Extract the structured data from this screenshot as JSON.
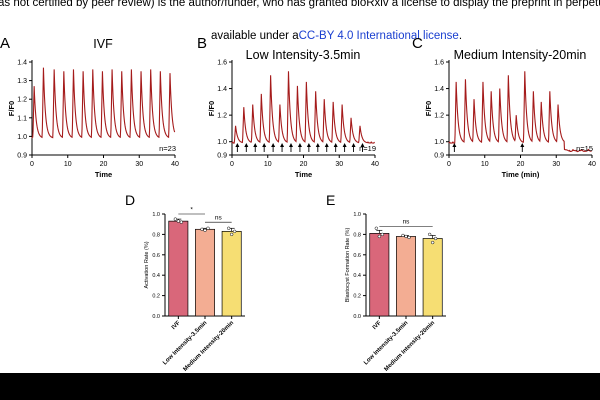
{
  "header": {
    "line1": "as not certified by peer review) is the author/funder, who has granted bioRxiv a license to display the preprint in perpetuity. It i",
    "line2_prefix": "available under a",
    "line2_link": "CC-BY 4.0 International license",
    "line2_suffix": "."
  },
  "colors": {
    "trace": "#a51b1b",
    "bar_ivf": "#d9677a",
    "bar_low": "#f3ad93",
    "bar_medium": "#f6de73"
  },
  "chart_data": [
    {
      "panel": "A",
      "type": "line",
      "title": "IVF",
      "xlabel": "Time",
      "ylabel": "F/F0",
      "xlim": [
        0,
        40
      ],
      "ylim": [
        0.9,
        1.4
      ],
      "xticks": [
        "0",
        "10",
        "20",
        "30",
        "40"
      ],
      "yticks": [
        "0.9",
        "1.0",
        "1.1",
        "1.2",
        "1.3",
        "1.4"
      ],
      "baseline": 0.99,
      "peaks": [
        {
          "x": 0.6,
          "y": 1.27
        },
        {
          "x": 3.2,
          "y": 1.37
        },
        {
          "x": 6.2,
          "y": 1.36
        },
        {
          "x": 8.9,
          "y": 1.35
        },
        {
          "x": 11.6,
          "y": 1.36
        },
        {
          "x": 14.3,
          "y": 1.35
        },
        {
          "x": 17.0,
          "y": 1.36
        },
        {
          "x": 19.7,
          "y": 1.35
        },
        {
          "x": 22.4,
          "y": 1.36
        },
        {
          "x": 25.1,
          "y": 1.35
        },
        {
          "x": 27.8,
          "y": 1.36
        },
        {
          "x": 30.5,
          "y": 1.35
        },
        {
          "x": 33.2,
          "y": 1.36
        },
        {
          "x": 35.9,
          "y": 1.35
        },
        {
          "x": 38.6,
          "y": 1.34
        }
      ],
      "annotation": "n=23"
    },
    {
      "panel": "B",
      "type": "line",
      "title": "Low Intensity-3.5min",
      "xlabel": "Time",
      "ylabel": "F/F0",
      "xlim": [
        0,
        40
      ],
      "ylim": [
        0.9,
        1.6
      ],
      "xticks": [
        "0",
        "10",
        "20",
        "30",
        "40"
      ],
      "yticks": [
        "0.9",
        "1.0",
        "1.2",
        "1.4",
        "1.6"
      ],
      "baseline": 0.99,
      "peaks": [
        {
          "x": 1.0,
          "y": 1.12
        },
        {
          "x": 3.3,
          "y": 1.26
        },
        {
          "x": 5.8,
          "y": 1.28
        },
        {
          "x": 8.2,
          "y": 1.36
        },
        {
          "x": 10.8,
          "y": 1.5
        },
        {
          "x": 13.4,
          "y": 1.28
        },
        {
          "x": 15.8,
          "y": 1.53
        },
        {
          "x": 18.3,
          "y": 1.42
        },
        {
          "x": 20.8,
          "y": 1.45
        },
        {
          "x": 23.4,
          "y": 1.38
        },
        {
          "x": 25.8,
          "y": 1.32
        },
        {
          "x": 28.3,
          "y": 1.3
        },
        {
          "x": 30.8,
          "y": 1.28
        },
        {
          "x": 33.3,
          "y": 1.18
        },
        {
          "x": 35.8,
          "y": 1.12
        }
      ],
      "stimulus_arrows_x": [
        1.5,
        4.0,
        6.5,
        9.0,
        11.5,
        14.0,
        16.5,
        19.0,
        21.5,
        24.0,
        26.5,
        29.0,
        31.5,
        34.0,
        36.5
      ],
      "annotation": "n=19"
    },
    {
      "panel": "C",
      "type": "line",
      "title": "Medium Intensity-20min",
      "xlabel": "Time (min)",
      "ylabel": "F/F0",
      "xlim": [
        0,
        40
      ],
      "ylim": [
        0.9,
        1.6
      ],
      "xticks": [
        "0",
        "10",
        "20",
        "30",
        "40"
      ],
      "yticks": [
        "0.9",
        "1.0",
        "1.2",
        "1.4",
        "1.6"
      ],
      "baseline": 0.99,
      "late_baseline": 0.93,
      "peaks": [
        {
          "x": 2.0,
          "y": 1.45
        },
        {
          "x": 4.6,
          "y": 1.47
        },
        {
          "x": 7.0,
          "y": 1.32
        },
        {
          "x": 9.5,
          "y": 1.45
        },
        {
          "x": 11.8,
          "y": 1.38
        },
        {
          "x": 14.2,
          "y": 1.4
        },
        {
          "x": 16.6,
          "y": 1.5
        },
        {
          "x": 18.8,
          "y": 1.2
        },
        {
          "x": 21.2,
          "y": 1.53
        },
        {
          "x": 23.6,
          "y": 1.38
        },
        {
          "x": 25.8,
          "y": 1.3
        },
        {
          "x": 28.2,
          "y": 1.38
        },
        {
          "x": 30.5,
          "y": 1.28
        }
      ],
      "stimulus_arrows_x": [
        1.5,
        20.5
      ],
      "annotation": "n=15"
    },
    {
      "panel": "D",
      "type": "bar",
      "ylabel": "Activation Rate (%)",
      "ylim": [
        0,
        1.0
      ],
      "yticks": [
        "0.0",
        "0.2",
        "0.4",
        "0.6",
        "0.8",
        "1.0"
      ],
      "categories": [
        "IVF",
        "Low Intensity-3.5min",
        "Medium Intensity-20min"
      ],
      "values": [
        0.93,
        0.85,
        0.83
      ],
      "errors": [
        0.02,
        0.01,
        0.03
      ],
      "points": [
        [
          0.95,
          0.93,
          0.92
        ],
        [
          0.85,
          0.84,
          0.86
        ],
        [
          0.86,
          0.8,
          0.83
        ]
      ],
      "significance": [
        {
          "from": 0,
          "to": 1,
          "label": "*"
        },
        {
          "from": 1,
          "to": 2,
          "label": "ns"
        }
      ]
    },
    {
      "panel": "E",
      "type": "bar",
      "ylabel": "Blastocyst Formation Rate (%)",
      "ylim": [
        0,
        1.0
      ],
      "yticks": [
        "0.0",
        "0.2",
        "0.4",
        "0.6",
        "0.8",
        "1.0"
      ],
      "categories": [
        "IVF",
        "Low Intensity-3.5min",
        "Medium Intensity-20min"
      ],
      "values": [
        0.81,
        0.78,
        0.76
      ],
      "errors": [
        0.03,
        0.01,
        0.03
      ],
      "points": [
        [
          0.86,
          0.78,
          0.8
        ],
        [
          0.79,
          0.78,
          0.77
        ],
        [
          0.8,
          0.72,
          0.76
        ]
      ],
      "significance": [
        {
          "from": 0,
          "to": 2,
          "label": "ns"
        }
      ]
    }
  ]
}
